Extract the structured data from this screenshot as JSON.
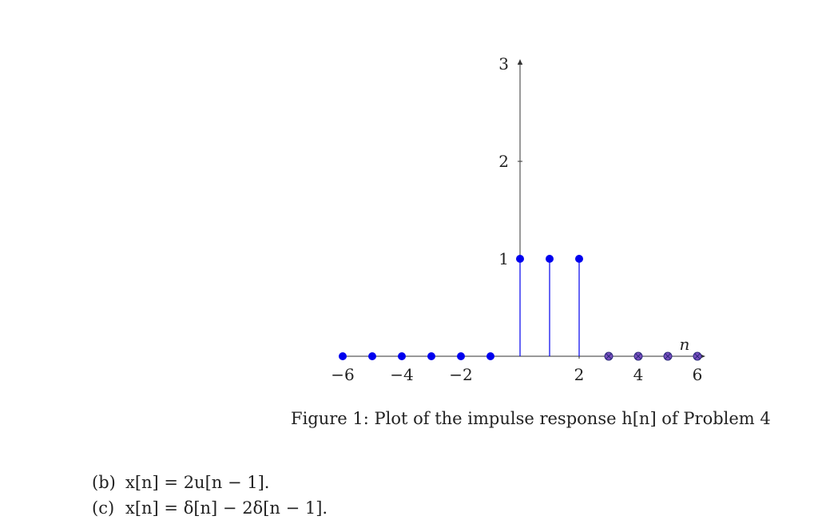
{
  "figure": {
    "caption": "Figure 1: Plot of the impulse response h[n] of Problem 4"
  },
  "chart_data": {
    "type": "stem",
    "title": "",
    "xlabel": "n",
    "ylabel": "",
    "xlim": [
      -6,
      6
    ],
    "ylim": [
      0,
      3
    ],
    "x_ticks": [
      -6,
      -4,
      -2,
      2,
      4,
      6
    ],
    "x_tick_labels": [
      "−6",
      "−4",
      "−2",
      "2",
      "4",
      "6"
    ],
    "y_ticks": [
      1,
      2,
      3
    ],
    "y_tick_labels": [
      "1",
      "2",
      "3"
    ],
    "series": [
      {
        "x": [
          -6,
          -5,
          -4,
          -3,
          -2,
          -1,
          0,
          1,
          2,
          3,
          4,
          5,
          6
        ],
        "y": [
          0,
          0,
          0,
          0,
          0,
          0,
          1,
          1,
          1,
          0,
          0,
          0,
          0
        ],
        "marker_style": [
          "solid",
          "solid",
          "solid",
          "solid",
          "solid",
          "solid",
          "solid",
          "solid",
          "solid",
          "crossed",
          "crossed",
          "crossed",
          "crossed"
        ]
      }
    ],
    "colors": {
      "stem": "#0000ee",
      "marker_crossed": "#7a4fc0",
      "axis": "#333333"
    }
  },
  "problems": [
    {
      "label": "(b)",
      "text": "x[n] = 2u[n − 1]."
    },
    {
      "label": "(c)",
      "text": "x[n] = δ[n] − 2δ[n − 1]."
    }
  ]
}
